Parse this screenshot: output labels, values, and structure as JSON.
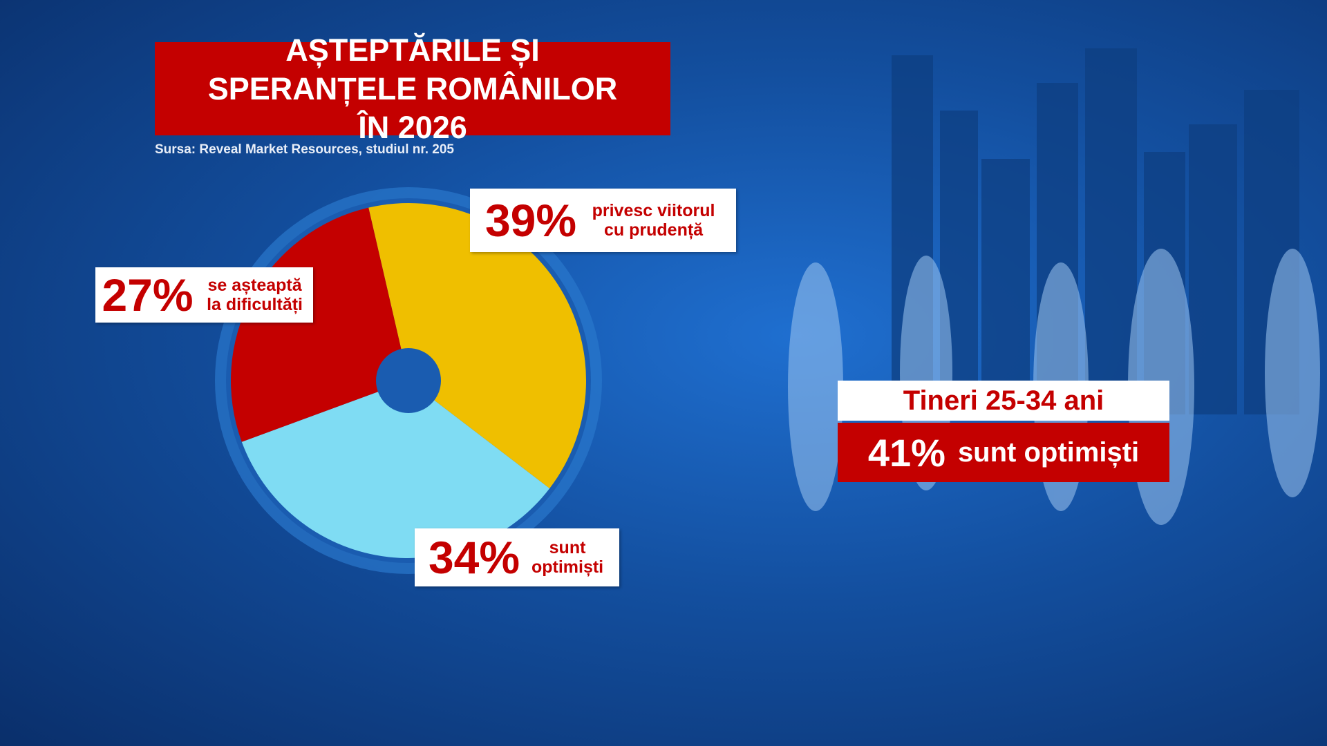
{
  "chart_data": {
    "type": "pie",
    "title": "AȘTEPTĂRILE ȘI SPERANȚELE ROMÂNILOR ÎN 2026",
    "subtitle": "Sursa: Reveal Market Resources, studiul nr. 205",
    "categories": [
      "privesc viitorul cu prudență",
      "sunt optimiști",
      "se așteaptă la dificultăți"
    ],
    "values": [
      39,
      34,
      27
    ],
    "value_labels": [
      "39%",
      "34%",
      "27%"
    ],
    "colors": [
      "#efbf00",
      "#7fdcf3",
      "#c40000"
    ],
    "annotation": {
      "title": "Tineri 25-34 ani",
      "value_label": "41%",
      "text": "sunt optimiști"
    }
  }
}
